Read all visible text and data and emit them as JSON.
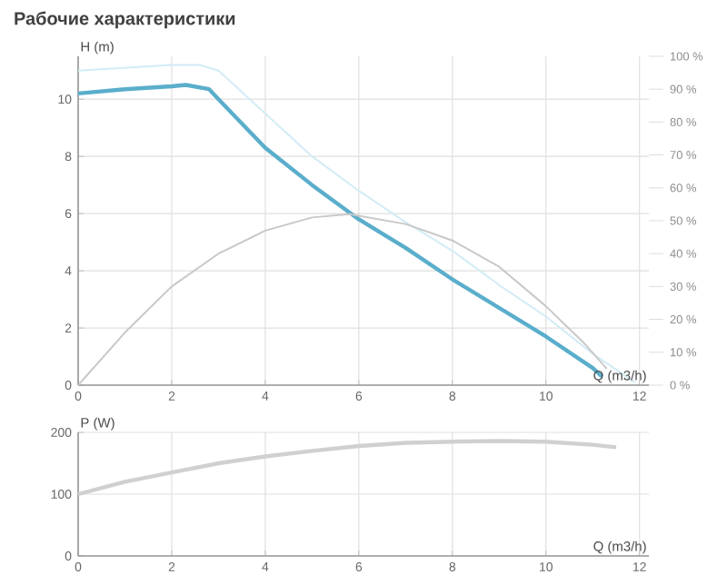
{
  "chart_data": [
    {
      "type": "line",
      "title": "Рабочие характеристики",
      "xlabel": "Q (m3/h)",
      "ylabel": "H (m)",
      "xlim": [
        0,
        12.2
      ],
      "ylim": [
        0,
        11.5
      ],
      "y2lim": [
        0,
        100
      ],
      "grid": true,
      "xticks": [
        0,
        2,
        4,
        6,
        8,
        10,
        12
      ],
      "yticks": [
        0,
        2,
        4,
        6,
        8,
        10
      ],
      "y2ticks": [
        {
          "value": 0,
          "label": "0 %"
        },
        {
          "value": 10,
          "label": "10 %"
        },
        {
          "value": 20,
          "label": "20 %"
        },
        {
          "value": 30,
          "label": "30 %"
        },
        {
          "value": 40,
          "label": "40 %"
        },
        {
          "value": 50,
          "label": "50 %"
        },
        {
          "value": 60,
          "label": "60 %"
        },
        {
          "value": 70,
          "label": "70 %"
        },
        {
          "value": 80,
          "label": "80 %"
        },
        {
          "value": 90,
          "label": "90 %"
        },
        {
          "value": 100,
          "label": "100 %"
        }
      ],
      "series": [
        {
          "color": "#d2ecf5",
          "x": [
            0,
            1,
            2,
            2.6,
            3,
            4,
            5,
            6,
            7,
            8,
            9,
            10,
            11,
            11.9
          ],
          "values": [
            11.0,
            11.1,
            11.2,
            11.2,
            11.0,
            9.5,
            8.0,
            6.8,
            5.7,
            4.7,
            3.5,
            2.4,
            1.1,
            0.1
          ]
        },
        {
          "color": "#c8c8c8",
          "axis": "y2",
          "x": [
            0,
            1,
            2,
            3,
            4,
            5,
            5.8,
            7,
            8,
            9,
            10,
            10.8,
            11.3
          ],
          "values": [
            0,
            16,
            30,
            40,
            47,
            51,
            52,
            49,
            44,
            36,
            24,
            13,
            5
          ]
        },
        {
          "color": "#5aaecb",
          "x": [
            0,
            1,
            2,
            2.3,
            2.8,
            3,
            4,
            5,
            6,
            7,
            8,
            9,
            10,
            11,
            11.2
          ],
          "values": [
            10.2,
            10.35,
            10.45,
            10.5,
            10.35,
            10.0,
            8.3,
            7.0,
            5.8,
            4.8,
            3.7,
            2.7,
            1.7,
            0.6,
            0.3
          ]
        }
      ]
    },
    {
      "type": "line",
      "xlabel": "Q (m3/h)",
      "ylabel": "P (W)",
      "xlim": [
        0,
        12.2
      ],
      "ylim": [
        0,
        200
      ],
      "grid": true,
      "xticks": [
        0,
        2,
        4,
        6,
        8,
        10,
        12
      ],
      "yticks": [
        0,
        100,
        200
      ],
      "series": [
        {
          "color": "#d0d0d0",
          "x": [
            0,
            1,
            2,
            3,
            4,
            5,
            6,
            7,
            8,
            9,
            10,
            11,
            11.5
          ],
          "values": [
            100,
            120,
            135,
            150,
            161,
            170,
            178,
            183,
            185,
            186,
            185,
            180,
            176
          ]
        }
      ]
    }
  ]
}
